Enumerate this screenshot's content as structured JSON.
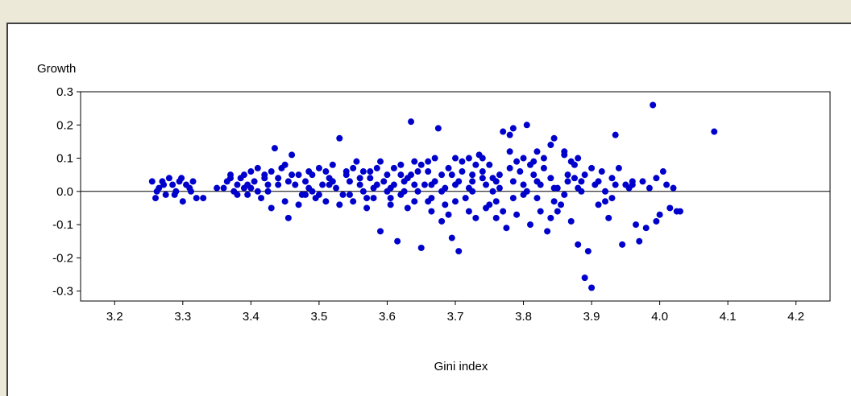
{
  "chart_data": {
    "type": "scatter",
    "xlabel": "Gini index",
    "ylabel": "Growth",
    "xlim": [
      3.15,
      4.25
    ],
    "ylim": [
      -0.33,
      0.3
    ],
    "xticks": [
      3.2,
      3.3,
      3.4,
      3.5,
      3.6,
      3.7,
      3.8,
      3.9,
      4.0,
      4.1,
      4.2
    ],
    "xtick_labels": [
      "3.2",
      "3.3",
      "3.4",
      "3.5",
      "3.6",
      "3.7",
      "3.8",
      "3.9",
      "4.0",
      "4.1",
      "4.2"
    ],
    "yticks": [
      0.3,
      0.2,
      0.1,
      0.0,
      -0.1,
      -0.2,
      -0.3
    ],
    "ytick_labels": [
      "0.3",
      "0.2",
      "0.1",
      "0.0",
      "-0.1",
      "-0.2",
      "-0.3"
    ],
    "reference_line_y": 0.0,
    "marker_color": "#0000cc",
    "grid": false,
    "points": [
      [
        3.255,
        0.03
      ],
      [
        3.26,
        -0.02
      ],
      [
        3.265,
        0.01
      ],
      [
        3.27,
        0.03
      ],
      [
        3.275,
        -0.01
      ],
      [
        3.28,
        0.04
      ],
      [
        3.285,
        0.02
      ],
      [
        3.29,
        0.0
      ],
      [
        3.295,
        0.03
      ],
      [
        3.3,
        -0.03
      ],
      [
        3.305,
        0.02
      ],
      [
        3.31,
        0.01
      ],
      [
        3.315,
        0.03
      ],
      [
        3.32,
        -0.02
      ],
      [
        3.33,
        -0.02
      ],
      [
        3.262,
        0.0
      ],
      [
        3.272,
        0.02
      ],
      [
        3.288,
        -0.01
      ],
      [
        3.298,
        0.04
      ],
      [
        3.312,
        0.0
      ],
      [
        3.36,
        0.01
      ],
      [
        3.365,
        0.03
      ],
      [
        3.37,
        0.05
      ],
      [
        3.375,
        0.0
      ],
      [
        3.38,
        0.02
      ],
      [
        3.385,
        0.04
      ],
      [
        3.39,
        0.01
      ],
      [
        3.395,
        -0.01
      ],
      [
        3.4,
        0.06
      ],
      [
        3.405,
        0.03
      ],
      [
        3.41,
        0.0
      ],
      [
        3.415,
        -0.02
      ],
      [
        3.42,
        0.05
      ],
      [
        3.425,
        0.02
      ],
      [
        3.43,
        -0.05
      ],
      [
        3.435,
        0.13
      ],
      [
        3.44,
        0.04
      ],
      [
        3.445,
        0.07
      ],
      [
        3.45,
        -0.03
      ],
      [
        3.455,
        -0.08
      ],
      [
        3.46,
        0.11
      ],
      [
        3.465,
        0.02
      ],
      [
        3.47,
        0.05
      ],
      [
        3.475,
        -0.01
      ],
      [
        3.48,
        0.03
      ],
      [
        3.485,
        0.06
      ],
      [
        3.49,
        0.0
      ],
      [
        3.495,
        -0.02
      ],
      [
        3.5,
        0.07
      ],
      [
        3.505,
        0.02
      ],
      [
        3.51,
        -0.03
      ],
      [
        3.515,
        0.04
      ],
      [
        3.52,
        0.08
      ],
      [
        3.525,
        0.01
      ],
      [
        3.53,
        0.16
      ],
      [
        3.535,
        -0.01
      ],
      [
        3.54,
        0.05
      ],
      [
        3.545,
        0.03
      ],
      [
        3.55,
        -0.03
      ],
      [
        3.555,
        0.09
      ],
      [
        3.56,
        0.02
      ],
      [
        3.565,
        0.06
      ],
      [
        3.57,
        -0.02
      ],
      [
        3.575,
        0.04
      ],
      [
        3.58,
        0.01
      ],
      [
        3.585,
        0.07
      ],
      [
        3.59,
        -0.12
      ],
      [
        3.595,
        0.03
      ],
      [
        3.6,
        0.05
      ],
      [
        3.605,
        -0.04
      ],
      [
        3.61,
        0.02
      ],
      [
        3.615,
        -0.15
      ],
      [
        3.62,
        0.08
      ],
      [
        3.625,
        0.0
      ],
      [
        3.63,
        0.04
      ],
      [
        3.635,
        0.21
      ],
      [
        3.64,
        -0.03
      ],
      [
        3.645,
        0.06
      ],
      [
        3.65,
        -0.17
      ],
      [
        3.655,
        0.02
      ],
      [
        3.66,
        0.09
      ],
      [
        3.665,
        -0.06
      ],
      [
        3.67,
        0.03
      ],
      [
        3.675,
        0.19
      ],
      [
        3.68,
        0.05
      ],
      [
        3.685,
        -0.04
      ],
      [
        3.69,
        0.07
      ],
      [
        3.695,
        -0.14
      ],
      [
        3.7,
        0.02
      ],
      [
        3.705,
        -0.18
      ],
      [
        3.71,
        0.06
      ],
      [
        3.715,
        -0.02
      ],
      [
        3.72,
        0.1
      ],
      [
        3.725,
        0.03
      ],
      [
        3.73,
        -0.08
      ],
      [
        3.735,
        0.11
      ],
      [
        3.74,
        0.04
      ],
      [
        3.745,
        -0.05
      ],
      [
        3.75,
        0.08
      ],
      [
        3.755,
        0.0
      ],
      [
        3.76,
        -0.03
      ],
      [
        3.765,
        0.05
      ],
      [
        3.77,
        0.18
      ],
      [
        3.775,
        -0.11
      ],
      [
        3.78,
        0.17
      ],
      [
        3.785,
        0.19
      ],
      [
        3.79,
        -0.07
      ],
      [
        3.795,
        0.06
      ],
      [
        3.8,
        0.02
      ],
      [
        3.805,
        0.2
      ],
      [
        3.81,
        -0.1
      ],
      [
        3.815,
        0.09
      ],
      [
        3.82,
        0.03
      ],
      [
        3.825,
        -0.06
      ],
      [
        3.83,
        0.07
      ],
      [
        3.835,
        -0.12
      ],
      [
        3.84,
        0.14
      ],
      [
        3.845,
        0.16
      ],
      [
        3.85,
        0.01
      ],
      [
        3.855,
        -0.04
      ],
      [
        3.86,
        0.12
      ],
      [
        3.865,
        0.05
      ],
      [
        3.87,
        -0.09
      ],
      [
        3.875,
        0.08
      ],
      [
        3.88,
        -0.16
      ],
      [
        3.885,
        0.03
      ],
      [
        3.89,
        -0.26
      ],
      [
        3.895,
        -0.18
      ],
      [
        3.9,
        -0.29
      ],
      [
        3.905,
        0.02
      ],
      [
        3.91,
        -0.04
      ],
      [
        3.915,
        0.06
      ],
      [
        3.92,
        0.0
      ],
      [
        3.925,
        -0.08
      ],
      [
        3.93,
        0.04
      ],
      [
        3.935,
        0.17
      ],
      [
        3.94,
        0.07
      ],
      [
        3.945,
        -0.16
      ],
      [
        3.95,
        0.02
      ],
      [
        3.96,
        0.03
      ],
      [
        3.965,
        -0.1
      ],
      [
        3.97,
        -0.15
      ],
      [
        3.975,
        0.03
      ],
      [
        3.98,
        -0.11
      ],
      [
        3.985,
        0.01
      ],
      [
        3.99,
        0.26
      ],
      [
        3.995,
        0.04
      ],
      [
        4.0,
        -0.07
      ],
      [
        4.005,
        0.06
      ],
      [
        4.01,
        0.02
      ],
      [
        4.015,
        -0.05
      ],
      [
        4.02,
        0.01
      ],
      [
        4.025,
        -0.06
      ],
      [
        4.03,
        -0.06
      ],
      [
        4.08,
        0.18
      ],
      [
        3.935,
        0.02
      ],
      [
        3.995,
        -0.09
      ],
      [
        3.955,
        0.01
      ],
      [
        3.93,
        -0.02
      ],
      [
        3.96,
        0.02
      ],
      [
        3.565,
        0.0
      ],
      [
        3.585,
        0.02
      ],
      [
        3.605,
        0.01
      ],
      [
        3.625,
        0.03
      ],
      [
        3.645,
        0.0
      ],
      [
        3.665,
        0.02
      ],
      [
        3.685,
        0.01
      ],
      [
        3.705,
        0.03
      ],
      [
        3.725,
        0.0
      ],
      [
        3.745,
        0.02
      ],
      [
        3.765,
        0.01
      ],
      [
        3.785,
        0.03
      ],
      [
        3.805,
        0.0
      ],
      [
        3.825,
        0.02
      ],
      [
        3.845,
        0.01
      ],
      [
        3.865,
        0.03
      ],
      [
        3.885,
        0.0
      ],
      [
        3.725,
        0.05
      ],
      [
        3.755,
        0.04
      ],
      [
        3.785,
        -0.02
      ],
      [
        3.815,
        0.05
      ],
      [
        3.845,
        -0.03
      ],
      [
        3.875,
        0.04
      ],
      [
        3.695,
        0.05
      ],
      [
        3.665,
        -0.02
      ],
      [
        3.635,
        0.05
      ],
      [
        3.605,
        -0.02
      ],
      [
        3.575,
        0.06
      ],
      [
        3.545,
        -0.01
      ],
      [
        3.515,
        0.02
      ],
      [
        3.485,
        0.01
      ],
      [
        3.455,
        0.03
      ],
      [
        3.425,
        0.0
      ],
      [
        3.395,
        0.02
      ],
      [
        3.4,
        0.01
      ],
      [
        3.44,
        0.02
      ],
      [
        3.48,
        -0.01
      ],
      [
        3.52,
        0.03
      ],
      [
        3.56,
        0.04
      ],
      [
        3.6,
        0.0
      ],
      [
        3.64,
        0.02
      ],
      [
        3.68,
        0.0
      ],
      [
        3.72,
        0.01
      ],
      [
        3.76,
        0.03
      ],
      [
        3.8,
        -0.01
      ],
      [
        3.84,
        0.04
      ],
      [
        3.88,
        0.01
      ],
      [
        3.7,
        -0.03
      ],
      [
        3.74,
        0.06
      ],
      [
        3.78,
        0.07
      ],
      [
        3.82,
        -0.02
      ],
      [
        3.86,
        -0.01
      ],
      [
        3.66,
        0.06
      ],
      [
        3.62,
        -0.01
      ],
      [
        3.58,
        -0.02
      ],
      [
        3.54,
        0.06
      ],
      [
        3.5,
        -0.01
      ],
      [
        3.46,
        0.05
      ],
      [
        3.42,
        0.04
      ],
      [
        3.38,
        -0.01
      ],
      [
        3.73,
        0.08
      ],
      [
        3.77,
        -0.06
      ],
      [
        3.81,
        0.08
      ],
      [
        3.85,
        -0.06
      ],
      [
        3.69,
        -0.07
      ],
      [
        3.65,
        0.08
      ],
      [
        3.61,
        0.07
      ],
      [
        3.57,
        -0.05
      ],
      [
        3.53,
        -0.04
      ],
      [
        3.49,
        0.05
      ],
      [
        3.45,
        0.08
      ],
      [
        3.41,
        0.07
      ],
      [
        3.37,
        0.04
      ],
      [
        3.89,
        0.05
      ],
      [
        3.87,
        0.09
      ],
      [
        3.83,
        0.1
      ],
      [
        3.79,
        0.09
      ],
      [
        3.75,
        -0.04
      ],
      [
        3.71,
        0.09
      ],
      [
        3.67,
        0.1
      ],
      [
        3.63,
        -0.05
      ],
      [
        3.59,
        0.09
      ],
      [
        3.55,
        0.07
      ],
      [
        3.51,
        0.06
      ],
      [
        3.47,
        -0.04
      ],
      [
        3.43,
        0.06
      ],
      [
        3.39,
        0.05
      ],
      [
        3.35,
        0.01
      ],
      [
        3.91,
        0.03
      ],
      [
        3.92,
        -0.03
      ],
      [
        3.9,
        0.07
      ],
      [
        3.88,
        0.1
      ],
      [
        3.86,
        0.11
      ],
      [
        3.84,
        -0.08
      ],
      [
        3.82,
        0.12
      ],
      [
        3.8,
        0.1
      ],
      [
        3.78,
        0.12
      ],
      [
        3.76,
        -0.08
      ],
      [
        3.74,
        0.1
      ],
      [
        3.72,
        -0.06
      ],
      [
        3.7,
        0.1
      ],
      [
        3.68,
        -0.09
      ],
      [
        3.66,
        -0.03
      ],
      [
        3.64,
        0.09
      ],
      [
        3.62,
        0.05
      ]
    ]
  }
}
